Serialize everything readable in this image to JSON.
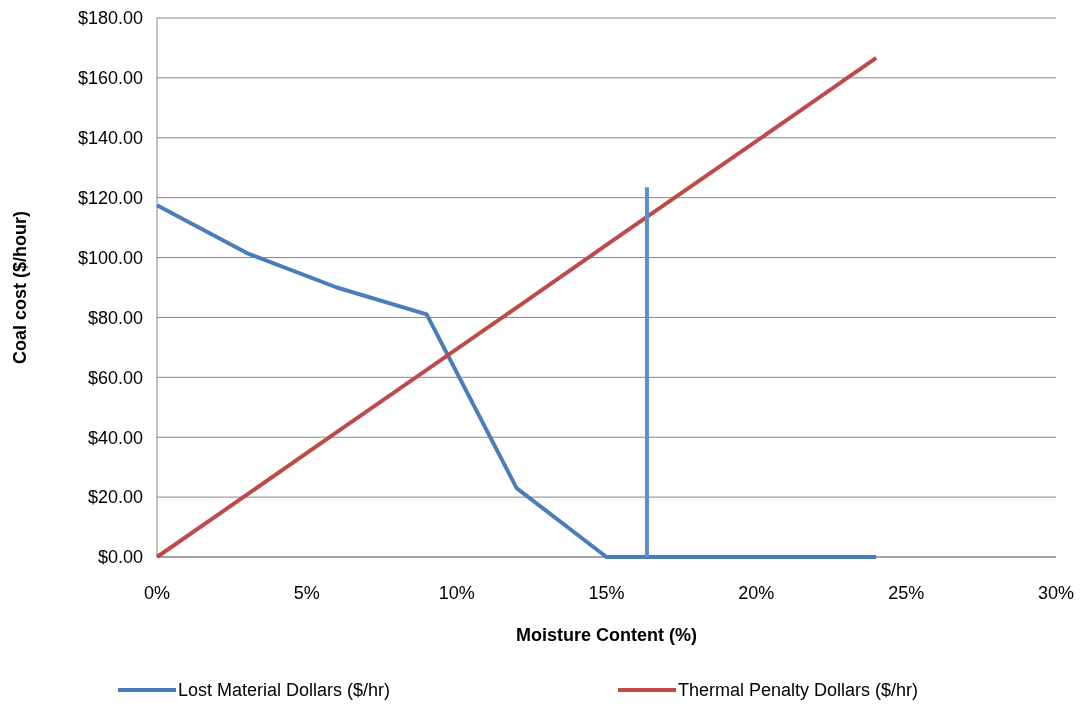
{
  "chart_data": {
    "type": "line",
    "xlabel": "Moisture Content (%)",
    "ylabel": "Coal cost ($/hour)",
    "xlim": [
      0,
      30
    ],
    "xticks": [
      {
        "value": 0,
        "label": "0%"
      },
      {
        "value": 5,
        "label": "5%"
      },
      {
        "value": 10,
        "label": "10%"
      },
      {
        "value": 15,
        "label": "15%"
      },
      {
        "value": 20,
        "label": "20%"
      },
      {
        "value": 25,
        "label": "25%"
      },
      {
        "value": 30,
        "label": "30%"
      }
    ],
    "ylim": [
      0,
      180
    ],
    "yticks": [
      {
        "value": 0,
        "label": "$0.00"
      },
      {
        "value": 20,
        "label": "$20.00"
      },
      {
        "value": 40,
        "label": "$40.00"
      },
      {
        "value": 60,
        "label": "$60.00"
      },
      {
        "value": 80,
        "label": "$80.00"
      },
      {
        "value": 100,
        "label": "$100.00"
      },
      {
        "value": 120,
        "label": "$120.00"
      },
      {
        "value": 140,
        "label": "$140.00"
      },
      {
        "value": 160,
        "label": "$160.00"
      },
      {
        "value": 180,
        "label": "$180.00"
      }
    ],
    "grid": "y",
    "legend": "bottom",
    "marker": "none",
    "line_style": "solid",
    "series": [
      {
        "name": "Lost Material Dollars ($/hr)",
        "color": "#4a7ebb",
        "x": [
          0,
          3,
          6,
          9,
          12,
          15,
          24
        ],
        "values": [
          117.5,
          101.5,
          90,
          81,
          23,
          0,
          0
        ]
      },
      {
        "name": "Thermal Penalty Dollars ($/hr)",
        "color": "#be4b48",
        "x": [
          0,
          3,
          6,
          9,
          12,
          15,
          18,
          21,
          24
        ],
        "values": [
          0,
          20.8,
          41.7,
          62.5,
          83.3,
          104.2,
          125,
          145.8,
          166.7
        ]
      },
      {
        "color": "#5b8fd0",
        "x": [
          16.35,
          16.35
        ],
        "values": [
          0,
          123.5
        ]
      }
    ]
  }
}
